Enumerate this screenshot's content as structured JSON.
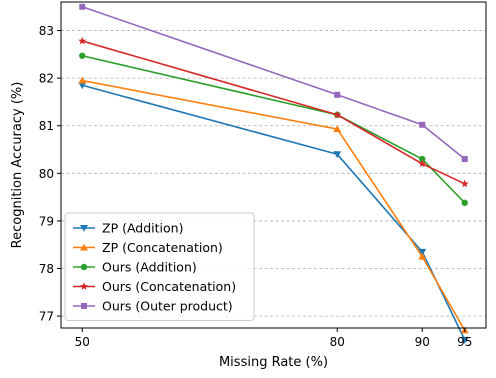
{
  "chart_data": {
    "type": "line",
    "title": "",
    "xlabel": "Missing Rate (%)",
    "ylabel": "Recognition Accuracy (%)",
    "x": [
      50,
      80,
      90,
      95
    ],
    "xticks": [
      50,
      80,
      90,
      95
    ],
    "yticks": [
      77,
      78,
      79,
      80,
      81,
      82,
      83
    ],
    "xlim": [
      47.5,
      97.5
    ],
    "ylim": [
      76.75,
      83.6
    ],
    "grid": "y-dashed",
    "legend_position": "lower-left",
    "series": [
      {
        "name": "ZP (Addition)",
        "values": [
          81.85,
          80.4,
          78.35,
          76.5
        ],
        "color": "#1f77b4",
        "marker": "triangle-down"
      },
      {
        "name": "ZP (Concatenation)",
        "values": [
          81.95,
          80.93,
          78.25,
          76.7
        ],
        "color": "#ff7f0e",
        "marker": "triangle-up"
      },
      {
        "name": "Ours (Addition)",
        "values": [
          82.47,
          81.23,
          80.3,
          79.38
        ],
        "color": "#2ca02c",
        "marker": "circle"
      },
      {
        "name": "Ours (Concatenation)",
        "values": [
          82.78,
          81.23,
          80.2,
          79.78
        ],
        "color": "#d62728",
        "marker": "star"
      },
      {
        "name": "Ours (Outer product)",
        "values": [
          83.5,
          81.65,
          81.02,
          80.3
        ],
        "color": "#9467bd",
        "marker": "square"
      }
    ]
  }
}
